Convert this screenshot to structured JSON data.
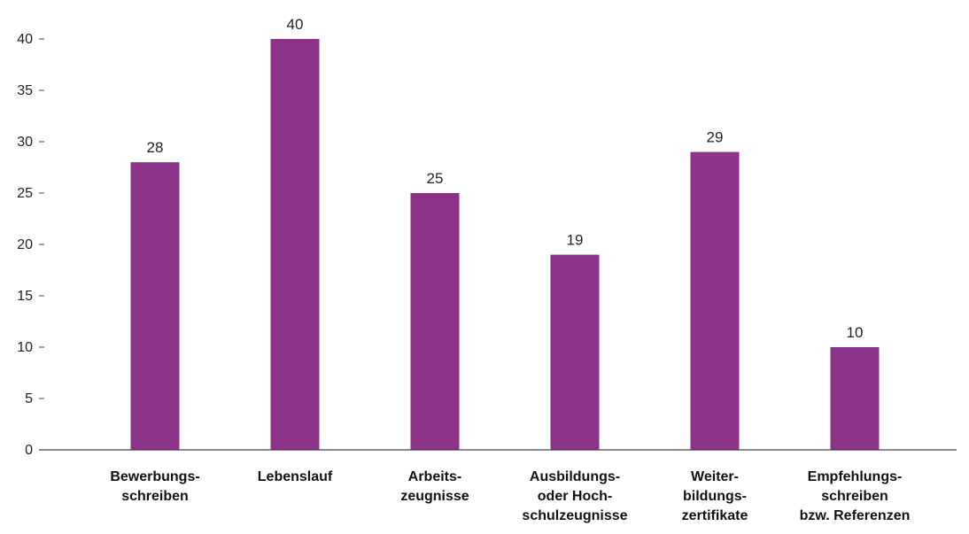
{
  "chart_data": {
    "type": "bar",
    "title": "",
    "xlabel": "",
    "ylabel": "",
    "ylim": [
      0,
      40
    ],
    "yticks": [
      0,
      5,
      10,
      15,
      20,
      25,
      30,
      35,
      40
    ],
    "grid": false,
    "legend": "none",
    "bar_color": "#8b3289",
    "categories": [
      [
        "Bewerbungs-",
        "schreiben"
      ],
      [
        "Lebenslauf"
      ],
      [
        "Arbeits-",
        "zeugnisse"
      ],
      [
        "Ausbildungs-",
        "oder Hoch-",
        "schulzeugnisse"
      ],
      [
        "Weiter-",
        "bildungs-",
        "zertifikate"
      ],
      [
        "Empfehlungs-",
        "schreiben",
        "bzw. Referenzen"
      ]
    ],
    "values": [
      28,
      40,
      25,
      19,
      29,
      10
    ],
    "value_labels": [
      "28",
      "40",
      "25",
      "19",
      "29",
      "10"
    ]
  }
}
